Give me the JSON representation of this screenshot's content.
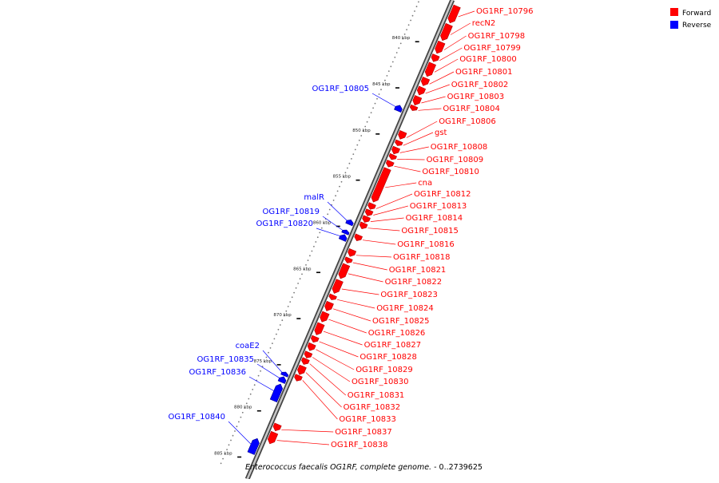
{
  "caption": {
    "organism": "Enterococcus faecalis OG1RF, complete genome.",
    "range": " - 0..2739625"
  },
  "legend": [
    {
      "label": "Forward",
      "color": "#ff0000"
    },
    {
      "label": "Reverse",
      "color": "#0000ff"
    }
  ],
  "axis": {
    "ticks": [
      {
        "kbp": 840,
        "label": "840 kbp"
      },
      {
        "kbp": 845,
        "label": "845 kbp"
      },
      {
        "kbp": 850,
        "label": "850 kbp"
      },
      {
        "kbp": 855,
        "label": "855 kbp"
      },
      {
        "kbp": 860,
        "label": "860 kbp"
      },
      {
        "kbp": 865,
        "label": "865 kbp"
      },
      {
        "kbp": 870,
        "label": "870 kbp"
      },
      {
        "kbp": 875,
        "label": "875 kbp"
      },
      {
        "kbp": 880,
        "label": "880 kbp"
      },
      {
        "kbp": 885,
        "label": "885 kbp"
      }
    ]
  },
  "forward_genes": [
    {
      "name": "OG1RF_10796",
      "start": 835.2,
      "end": 837.0
    },
    {
      "name": "recN2",
      "start": 837.2,
      "end": 838.9
    },
    {
      "name": "OG1RF_10798",
      "start": 839.1,
      "end": 840.3
    },
    {
      "name": "OG1RF_10799",
      "start": 840.5,
      "end": 841.2
    },
    {
      "name": "OG1RF_10800",
      "start": 841.4,
      "end": 842.8
    },
    {
      "name": "OG1RF_10801",
      "start": 843.0,
      "end": 843.8
    },
    {
      "name": "OG1RF_10802",
      "start": 844.0,
      "end": 844.8
    },
    {
      "name": "OG1RF_10803",
      "start": 845.0,
      "end": 845.9
    },
    {
      "name": "OG1RF_10804",
      "start": 846.0,
      "end": 846.5
    },
    {
      "name": "OG1RF_10806",
      "start": 848.8,
      "end": 849.6
    },
    {
      "name": "gst",
      "start": 849.8,
      "end": 850.3
    },
    {
      "name": "OG1RF_10808",
      "start": 850.5,
      "end": 851.2
    },
    {
      "name": "OG1RF_10809",
      "start": 851.3,
      "end": 851.8
    },
    {
      "name": "OG1RF_10810",
      "start": 852.0,
      "end": 852.6
    },
    {
      "name": "cna",
      "start": 852.8,
      "end": 856.4
    },
    {
      "name": "OG1RF_10812",
      "start": 856.6,
      "end": 857.2
    },
    {
      "name": "OG1RF_10813",
      "start": 857.3,
      "end": 857.9
    },
    {
      "name": "OG1RF_10814",
      "start": 858.0,
      "end": 858.6
    },
    {
      "name": "OG1RF_10815",
      "start": 858.7,
      "end": 859.3
    },
    {
      "name": "OG1RF_10816",
      "start": 860.0,
      "end": 860.6
    },
    {
      "name": "OG1RF_10818",
      "start": 861.6,
      "end": 862.3
    },
    {
      "name": "OG1RF_10821",
      "start": 862.5,
      "end": 863.0
    },
    {
      "name": "OG1RF_10822",
      "start": 863.2,
      "end": 864.7
    },
    {
      "name": "OG1RF_10823",
      "start": 864.9,
      "end": 866.3
    },
    {
      "name": "OG1RF_10824",
      "start": 866.5,
      "end": 867.0
    },
    {
      "name": "OG1RF_10825",
      "start": 867.3,
      "end": 868.2
    },
    {
      "name": "OG1RF_10826",
      "start": 868.4,
      "end": 869.4
    },
    {
      "name": "OG1RF_10827",
      "start": 869.6,
      "end": 870.8
    },
    {
      "name": "OG1RF_10828",
      "start": 871.0,
      "end": 871.6
    },
    {
      "name": "OG1RF_10829",
      "start": 871.8,
      "end": 872.5
    },
    {
      "name": "OG1RF_10830",
      "start": 872.7,
      "end": 873.3
    },
    {
      "name": "OG1RF_10831",
      "start": 873.4,
      "end": 874.0
    },
    {
      "name": "OG1RF_10832",
      "start": 874.2,
      "end": 875.1
    },
    {
      "name": "OG1RF_10833",
      "start": 875.2,
      "end": 875.8
    },
    {
      "name": "OG1RF_10837",
      "start": 880.5,
      "end": 881.2
    },
    {
      "name": "OG1RF_10838",
      "start": 881.4,
      "end": 882.6
    }
  ],
  "reverse_genes": [
    {
      "name": "OG1RF_10805",
      "start": 846.5,
      "end": 847.1
    },
    {
      "name": "malR",
      "start": 858.9,
      "end": 859.4
    },
    {
      "name": "OG1RF_10819",
      "start": 860.0,
      "end": 860.4
    },
    {
      "name": "OG1RF_10820",
      "start": 860.5,
      "end": 861.1
    },
    {
      "name": "coaE2",
      "start": 875.4,
      "end": 875.8
    },
    {
      "name": "OG1RF_10835",
      "start": 875.9,
      "end": 876.5
    },
    {
      "name": "OG1RF_10836",
      "start": 876.7,
      "end": 878.5
    },
    {
      "name": "OG1RF_10840",
      "start": 882.6,
      "end": 884.2
    }
  ]
}
